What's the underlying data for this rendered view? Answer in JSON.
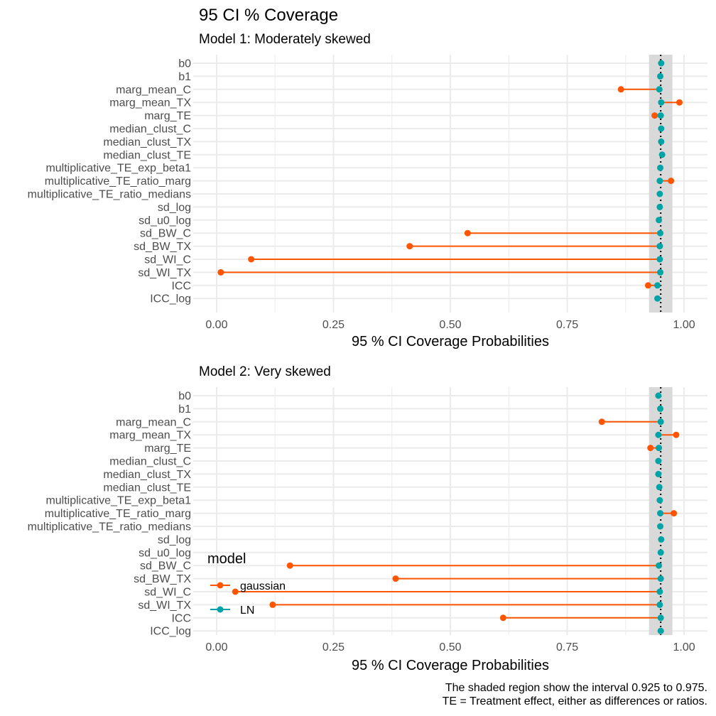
{
  "figure": {
    "title": "95 CI % Coverage",
    "caption_lines": [
      "The shaded region show the interval 0.925 to 0.975.",
      "TE = Treatment effect, either as differences or ratios."
    ]
  },
  "legend": {
    "title": "model",
    "entries": [
      {
        "label": "gaussian",
        "color": "#FF5500"
      },
      {
        "label": "LN",
        "color": "#00A3A6"
      }
    ]
  },
  "colors": {
    "gaussian": "#FF5500",
    "LN": "#00A3A6",
    "band": "#D9D9D9",
    "grid": "#EBEBEB",
    "reference_line": "#000000"
  },
  "chart_data": [
    {
      "type": "dot-segment",
      "subtitle": "Model 1: Moderately skewed",
      "xlabel": "95 % CI Coverage Probabilities",
      "xlim": [
        -0.05,
        1.05
      ],
      "xticks": [
        0,
        0.25,
        0.5,
        0.75,
        1
      ],
      "xtick_labels": [
        "0.00",
        "0.25",
        "0.50",
        "0.75",
        "1.00"
      ],
      "shaded_interval": [
        0.925,
        0.975
      ],
      "reference_x": 0.95,
      "grid": true,
      "categories": [
        "b0",
        "b1",
        "marg_mean_C",
        "marg_mean_TX",
        "marg_TE",
        "median_clust_C",
        "median_clust_TX",
        "median_clust_TE",
        "multiplicative_TE_exp_beta1",
        "multiplicative_TE_ratio_marg",
        "multiplicative_TE_ratio_medians",
        "sd_log",
        "sd_u0_log",
        "sd_BW_C",
        "sd_BW_TX",
        "sd_WI_C",
        "sd_WI_TX",
        "ICC",
        "ICC_log"
      ],
      "series": [
        {
          "name": "gaussian",
          "values": [
            null,
            null,
            0.865,
            0.99,
            0.937,
            null,
            null,
            null,
            null,
            0.972,
            null,
            null,
            null,
            0.537,
            0.413,
            0.074,
            0.009,
            0.923,
            null
          ]
        },
        {
          "name": "LN",
          "values": [
            0.951,
            0.949,
            0.947,
            0.951,
            0.95,
            0.951,
            0.951,
            0.953,
            0.949,
            0.948,
            0.948,
            0.948,
            0.946,
            0.949,
            0.948,
            0.948,
            0.949,
            0.943,
            0.943
          ]
        }
      ]
    },
    {
      "type": "dot-segment",
      "subtitle": "Model 2: Very skewed",
      "xlabel": "95 % CI Coverage Probabilities",
      "xlim": [
        -0.05,
        1.05
      ],
      "xticks": [
        0,
        0.25,
        0.5,
        0.75,
        1
      ],
      "xtick_labels": [
        "0.00",
        "0.25",
        "0.50",
        "0.75",
        "1.00"
      ],
      "shaded_interval": [
        0.925,
        0.975
      ],
      "reference_x": 0.95,
      "grid": true,
      "legend_position": "left",
      "categories": [
        "b0",
        "b1",
        "marg_mean_C",
        "marg_mean_TX",
        "marg_TE",
        "median_clust_C",
        "median_clust_TX",
        "median_clust_TE",
        "multiplicative_TE_exp_beta1",
        "multiplicative_TE_ratio_marg",
        "multiplicative_TE_ratio_medians",
        "sd_log",
        "sd_u0_log",
        "sd_BW_C",
        "sd_BW_TX",
        "sd_WI_C",
        "sd_WI_TX",
        "ICC",
        "ICC_log"
      ],
      "series": [
        {
          "name": "gaussian",
          "values": [
            null,
            null,
            0.824,
            0.983,
            0.928,
            null,
            null,
            null,
            null,
            0.978,
            null,
            null,
            null,
            0.157,
            0.383,
            0.04,
            0.12,
            0.613,
            null
          ]
        },
        {
          "name": "LN",
          "values": [
            0.945,
            0.949,
            0.95,
            0.945,
            0.946,
            0.945,
            0.945,
            0.947,
            0.948,
            0.949,
            0.949,
            0.951,
            0.95,
            0.946,
            0.95,
            0.948,
            0.948,
            0.95,
            0.95
          ]
        }
      ]
    }
  ]
}
